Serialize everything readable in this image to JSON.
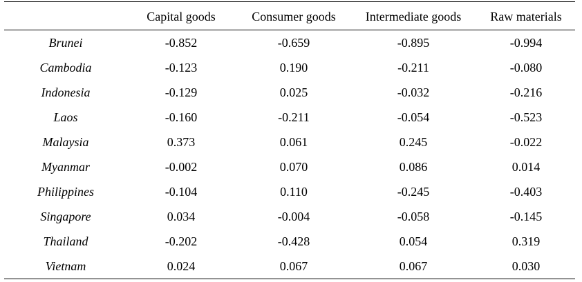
{
  "table": {
    "columns": [
      "Capital goods",
      "Consumer goods",
      "Intermediate goods",
      "Raw materials"
    ],
    "rows": [
      {
        "country": "Brunei",
        "values": [
          "-0.852",
          "-0.659",
          "-0.895",
          "-0.994"
        ]
      },
      {
        "country": "Cambodia",
        "values": [
          "-0.123",
          "0.190",
          "-0.211",
          "-0.080"
        ]
      },
      {
        "country": "Indonesia",
        "values": [
          "-0.129",
          "0.025",
          "-0.032",
          "-0.216"
        ]
      },
      {
        "country": "Laos",
        "values": [
          "-0.160",
          "-0.211",
          "-0.054",
          "-0.523"
        ]
      },
      {
        "country": "Malaysia",
        "values": [
          "0.373",
          "0.061",
          "0.245",
          "-0.022"
        ]
      },
      {
        "country": "Myanmar",
        "values": [
          "-0.002",
          "0.070",
          "0.086",
          "0.014"
        ]
      },
      {
        "country": "Philippines",
        "values": [
          "-0.104",
          "0.110",
          "-0.245",
          "-0.403"
        ]
      },
      {
        "country": "Singapore",
        "values": [
          "0.034",
          "-0.004",
          "-0.058",
          "-0.145"
        ]
      },
      {
        "country": "Thailand",
        "values": [
          "-0.202",
          "-0.428",
          "0.054",
          "0.319"
        ]
      },
      {
        "country": "Vietnam",
        "values": [
          "0.024",
          "0.067",
          "0.067",
          "0.030"
        ]
      }
    ]
  }
}
